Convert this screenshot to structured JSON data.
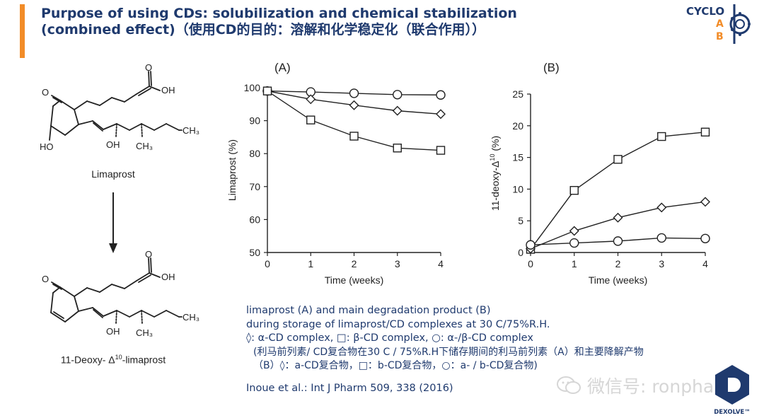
{
  "title": {
    "line1": "Purpose of using CDs: solubilization and chemical stabilization",
    "line2": "(combined effect)（使用CD的目的：溶解和化学稳定化（联合作用））"
  },
  "logo": {
    "word": "CYCLO",
    "letter_a": "A",
    "letter_b": "B",
    "color_dark": "#1f3a6e",
    "color_accent": "#f28c28"
  },
  "structures": {
    "top": {
      "name": "Limaprost",
      "oh": "OH",
      "ketone": "O",
      "ho": "HO",
      "oh2": "OH",
      "ch3_branch": "CH₃",
      "ch3_end": "CH₃"
    },
    "bottom": {
      "name_prefix": "11-Deoxy- Δ",
      "name_sup": "10",
      "name_suffix": "-limaprost",
      "oh": "OH",
      "ketone": "O",
      "oh2": "OH",
      "ch3_branch": "CH₃",
      "ch3_end": "CH₃"
    },
    "arrow_icon": "down-arrow-icon"
  },
  "chart_data": [
    {
      "type": "line",
      "panel_label": "(A)",
      "xlabel": "Time (weeks)",
      "ylabel": "Limaprost (%)",
      "xlim": [
        0,
        4
      ],
      "ylim": [
        50,
        100
      ],
      "xticks": [
        0,
        1,
        2,
        3,
        4
      ],
      "yticks": [
        50,
        60,
        70,
        80,
        90,
        100
      ],
      "grid": false,
      "series": [
        {
          "marker": "circle",
          "x": [
            0,
            1,
            2,
            3,
            4
          ],
          "values": [
            99,
            98.7,
            98.3,
            97.9,
            97.8
          ]
        },
        {
          "marker": "diamond",
          "x": [
            0,
            1,
            2,
            3,
            4
          ],
          "values": [
            99,
            96.5,
            94.7,
            93,
            92
          ]
        },
        {
          "marker": "square",
          "x": [
            0,
            1,
            2,
            3,
            4
          ],
          "values": [
            99,
            90.2,
            85.3,
            81.7,
            81
          ]
        }
      ]
    },
    {
      "type": "line",
      "panel_label": "(B)",
      "xlabel": "Time (weeks)",
      "ylabel": "11-deoxy-Δ10 (%)",
      "ylabel_main": "11-deoxy-Δ",
      "ylabel_sup": "10",
      "ylabel_unit": " (%)",
      "xlim": [
        0,
        4
      ],
      "ylim": [
        0,
        25
      ],
      "xticks": [
        0,
        1,
        2,
        3,
        4
      ],
      "yticks": [
        0,
        5,
        10,
        15,
        20,
        25
      ],
      "grid": false,
      "series": [
        {
          "marker": "square",
          "x": [
            0,
            1,
            2,
            3,
            4
          ],
          "values": [
            0.5,
            9.8,
            14.7,
            18.3,
            19
          ]
        },
        {
          "marker": "diamond",
          "x": [
            0,
            1,
            2,
            3,
            4
          ],
          "values": [
            0.6,
            3.4,
            5.5,
            7.1,
            8
          ]
        },
        {
          "marker": "circle",
          "x": [
            0,
            1,
            2,
            3,
            4
          ],
          "values": [
            1.2,
            1.5,
            1.8,
            2.3,
            2.2
          ]
        }
      ]
    }
  ],
  "caption": {
    "line1": "limaprost (A) and main degradation product (B)",
    "line2": "during storage of limaprost/CD complexes at 30 C/75%R.H.",
    "line3": "◊: α-CD complex, □: β-CD complex, ○: α-/β-CD complex",
    "line4": "(利马前列素/ CD复合物在30 C / 75%R.H下储存期间的利马前列素（A）和主要降解产物",
    "line5": "（B）◊：a-CD复合物，□：b-CD复合物，○：a- / b-CD复合物)",
    "reference": "Inoue et al.: Int J Pharm 509, 338 (2016)"
  },
  "watermark": {
    "text": "微信号: ronpharm",
    "icon": "wechat-icon"
  },
  "dexolve": {
    "text": "DEXOLVE™",
    "color": "#1f3a6e"
  }
}
